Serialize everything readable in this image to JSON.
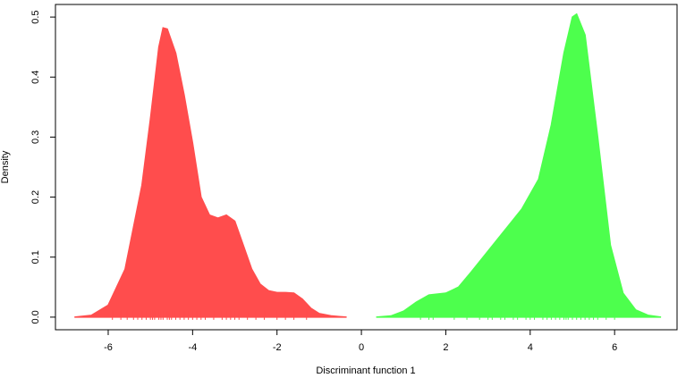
{
  "chart_data": {
    "type": "density",
    "xlabel": "Discriminant function 1",
    "ylabel": "Density",
    "xlim": [
      -7.25,
      7.48
    ],
    "ylim": [
      -0.021,
      0.521
    ],
    "xticks": [
      -6,
      -4,
      -2,
      0,
      2,
      4,
      6
    ],
    "yticks": [
      {
        "value": 0,
        "label": "0.0"
      },
      0.1,
      0.2,
      0.3,
      0.4,
      0.5
    ],
    "series": [
      {
        "color": "#ff4d4d",
        "x": [
          -6.8,
          -6.4,
          -6.0,
          -5.6,
          -5.2,
          -5.0,
          -4.8,
          -4.7,
          -4.6,
          -4.4,
          -4.2,
          -4.0,
          -3.8,
          -3.6,
          -3.4,
          -3.2,
          -3.0,
          -2.8,
          -2.6,
          -2.4,
          -2.2,
          -2.0,
          -1.8,
          -1.6,
          -1.4,
          -1.2,
          -1.0,
          -0.7,
          -0.35
        ],
        "values": [
          0,
          0.003,
          0.02,
          0.08,
          0.22,
          0.33,
          0.45,
          0.482,
          0.48,
          0.44,
          0.37,
          0.29,
          0.2,
          0.17,
          0.165,
          0.17,
          0.16,
          0.12,
          0.08,
          0.055,
          0.044,
          0.041,
          0.041,
          0.04,
          0.03,
          0.015,
          0.006,
          0.002,
          0
        ],
        "rug": [
          -5.9,
          -5.7,
          -5.55,
          -5.4,
          -5.3,
          -5.2,
          -5.1,
          -5.0,
          -4.95,
          -4.9,
          -4.8,
          -4.75,
          -4.7,
          -4.6,
          -4.55,
          -4.5,
          -4.4,
          -4.3,
          -4.2,
          -4.1,
          -4.0,
          -3.9,
          -3.8,
          -3.7,
          -3.5,
          -3.3,
          -3.2,
          -3.1,
          -3.0,
          -2.9,
          -2.7,
          -2.5,
          -2.3,
          -2.0,
          -1.8,
          -1.6,
          -1.3
        ]
      },
      {
        "color": "#4dff4d",
        "x": [
          0.35,
          0.7,
          1.0,
          1.3,
          1.6,
          2.0,
          2.3,
          2.6,
          3.0,
          3.4,
          3.8,
          4.2,
          4.5,
          4.8,
          5.0,
          5.1,
          5.3,
          5.6,
          5.9,
          6.2,
          6.5,
          6.8,
          7.1
        ],
        "values": [
          0,
          0.002,
          0.01,
          0.025,
          0.037,
          0.04,
          0.05,
          0.075,
          0.11,
          0.145,
          0.18,
          0.23,
          0.32,
          0.44,
          0.5,
          0.505,
          0.47,
          0.3,
          0.12,
          0.04,
          0.012,
          0.003,
          0
        ],
        "rug": [
          1.4,
          1.6,
          1.7,
          2.2,
          2.5,
          2.8,
          3.0,
          3.1,
          3.3,
          3.4,
          3.6,
          3.7,
          3.9,
          4.0,
          4.1,
          4.3,
          4.4,
          4.5,
          4.6,
          4.7,
          4.8,
          4.85,
          4.9,
          5.0,
          5.1,
          5.2,
          5.3,
          5.4,
          5.5,
          5.6,
          5.8,
          6.0
        ]
      }
    ]
  }
}
